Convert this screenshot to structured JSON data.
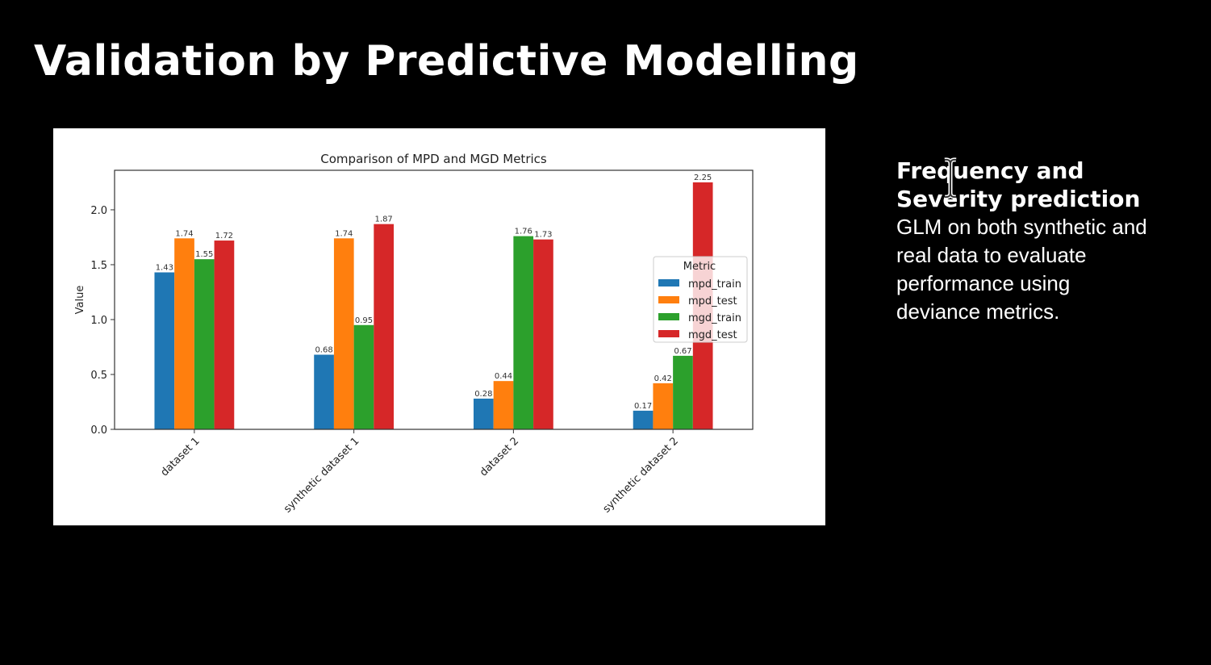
{
  "slide": {
    "title": "Validation by Predictive Modelling",
    "side_heading": "Frequency and Severity prediction",
    "side_body": "GLM on both synthetic and real data to evaluate performance using deviance metrics."
  },
  "chart_data": {
    "type": "bar",
    "title": "Comparison of MPD and MGD Metrics",
    "xlabel": "",
    "ylabel": "Value",
    "ylim": [
      0,
      2.36
    ],
    "yticks": [
      0.0,
      0.5,
      1.0,
      1.5,
      2.0
    ],
    "grid": false,
    "legend_title": "Metric",
    "legend_position": "center right",
    "categories": [
      "dataset 1",
      "synthetic dataset 1",
      "dataset 2",
      "synthetic dataset 2"
    ],
    "series": [
      {
        "name": "mpd_train",
        "color": "#1f77b4",
        "values": [
          1.43,
          0.68,
          0.28,
          0.17
        ]
      },
      {
        "name": "mpd_test",
        "color": "#ff7f0e",
        "values": [
          1.74,
          1.74,
          0.44,
          0.42
        ]
      },
      {
        "name": "mgd_train",
        "color": "#2ca02c",
        "values": [
          1.55,
          0.95,
          1.76,
          0.67
        ]
      },
      {
        "name": "mgd_test",
        "color": "#d62728",
        "values": [
          1.72,
          1.87,
          1.73,
          2.25
        ]
      }
    ],
    "data_labels": true
  }
}
